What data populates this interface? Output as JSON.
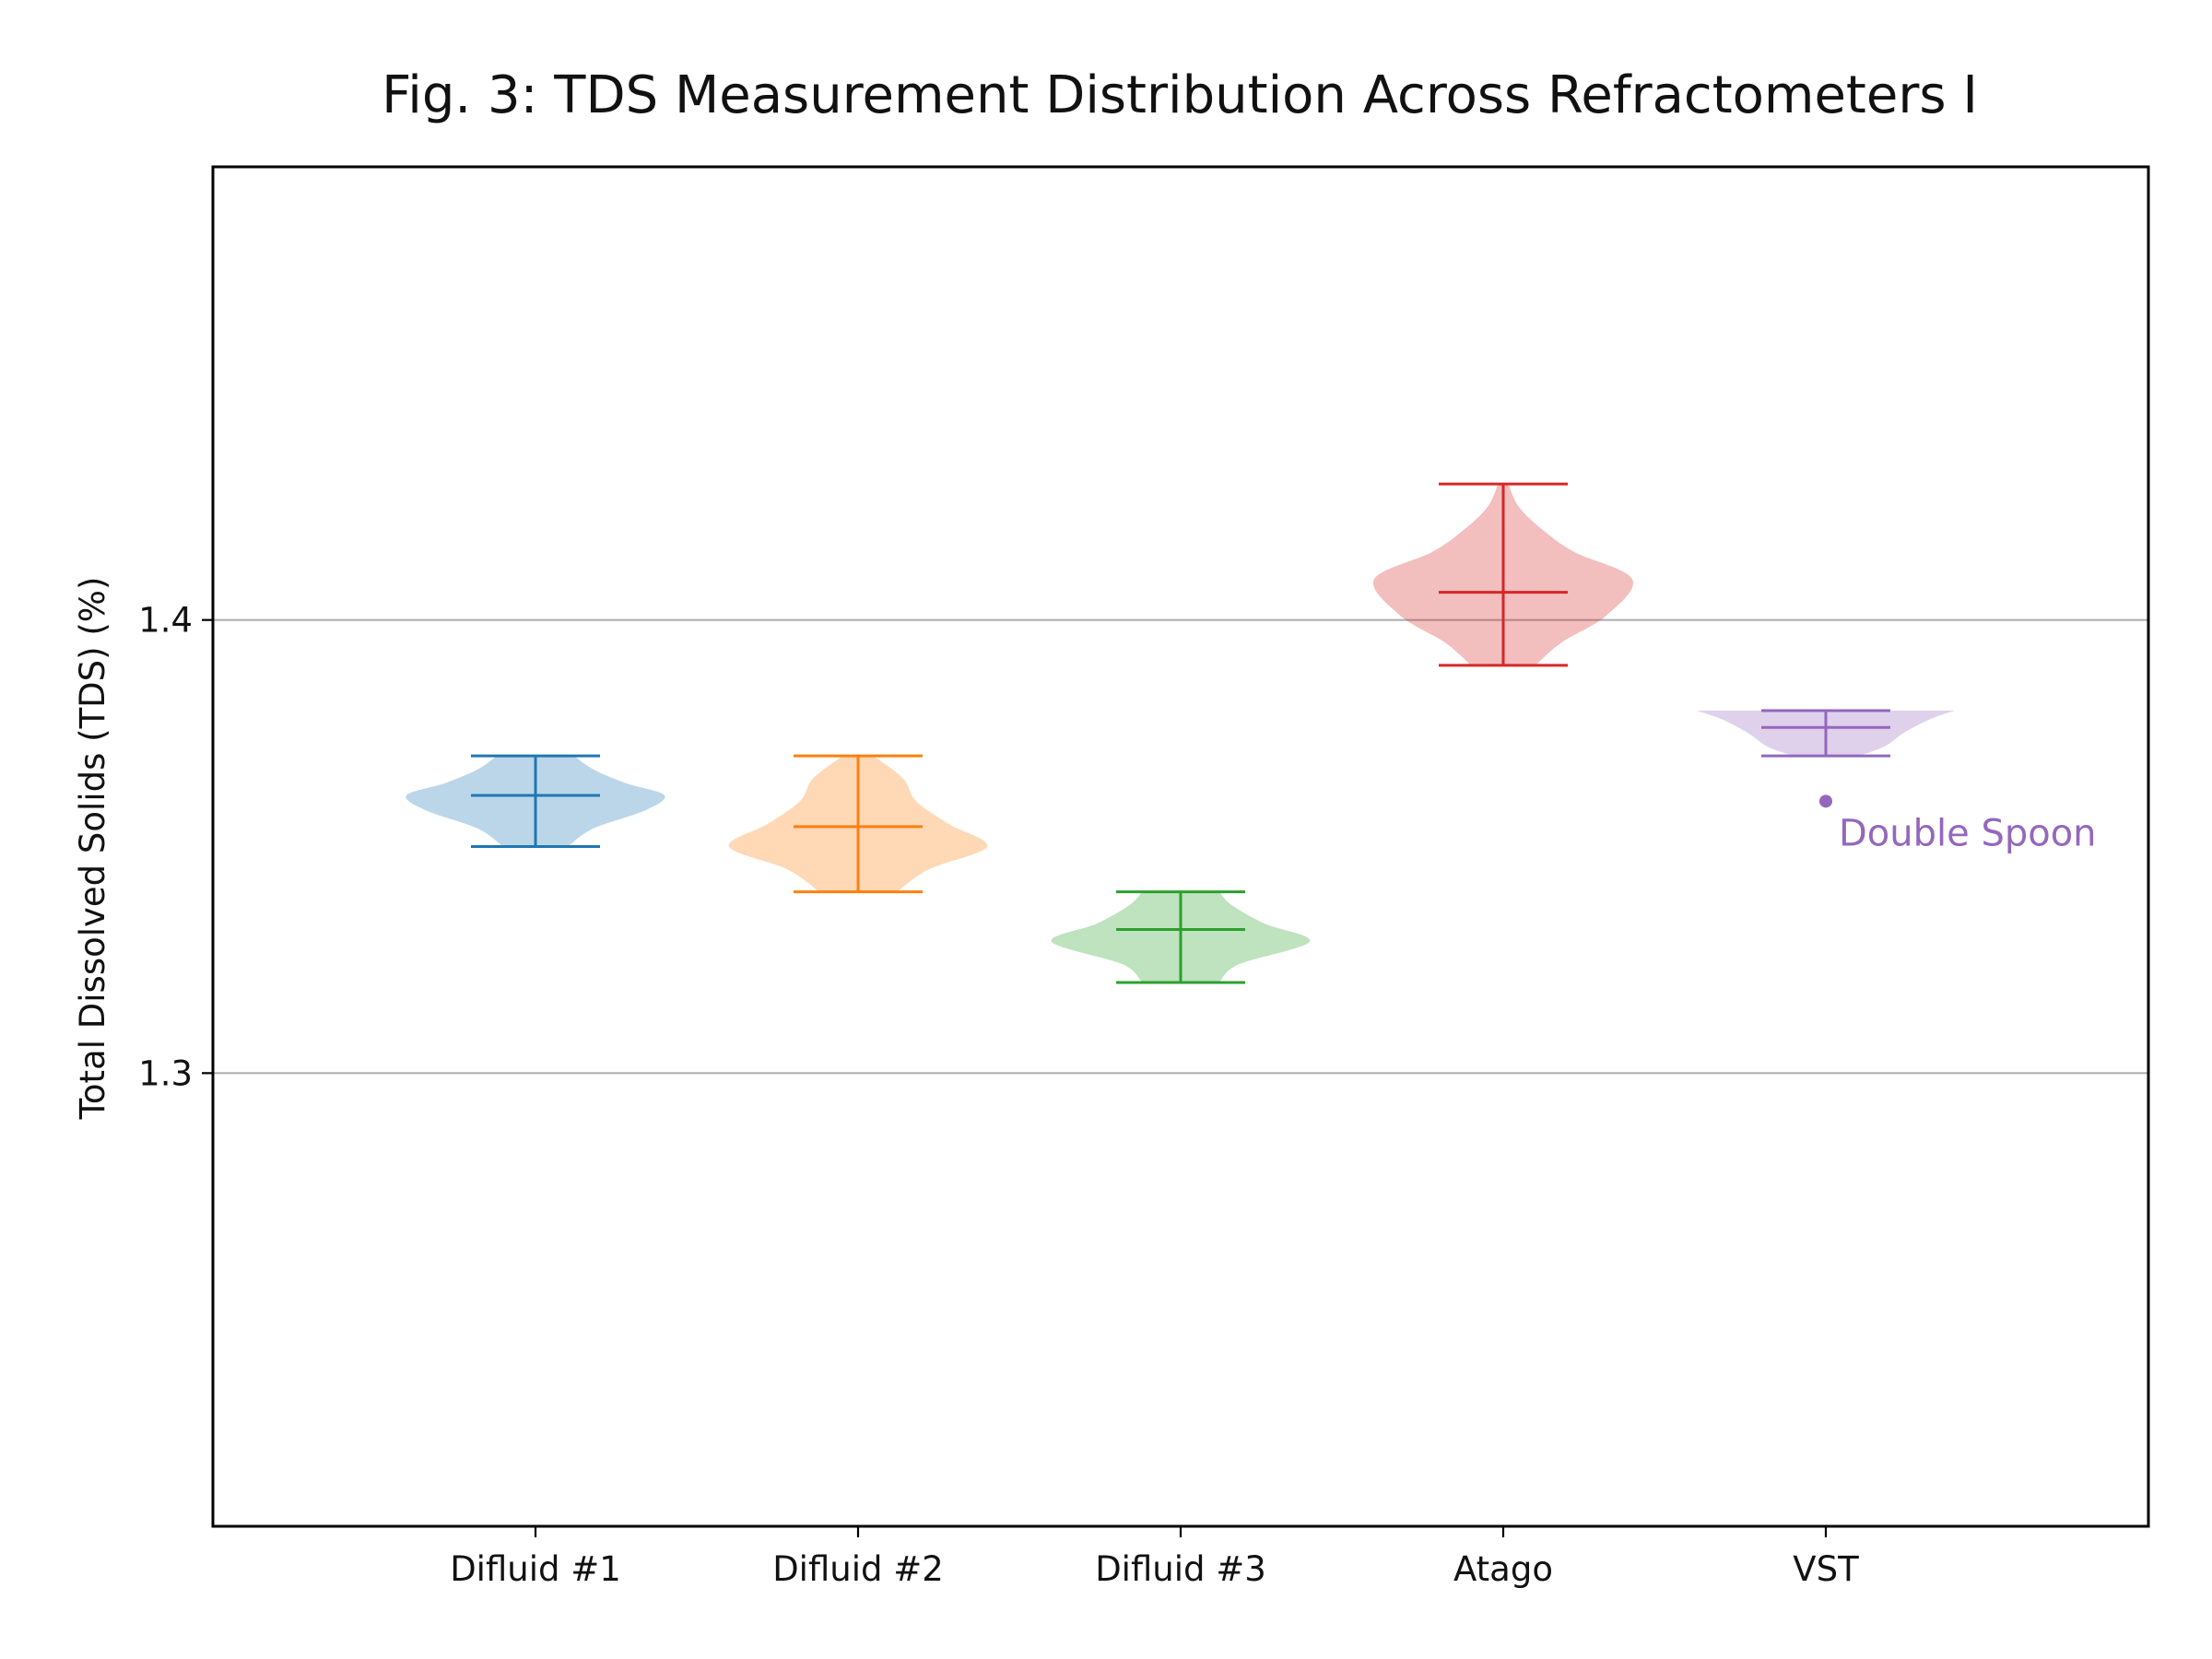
{
  "chart_data": {
    "type": "violin",
    "title": "Fig. 3: TDS Measurement Distribution Across Refractometers I",
    "xlabel": "",
    "ylabel": "Total Dissolved Solids (TDS) (%)",
    "ylim": [
      1.2,
      1.5
    ],
    "yticks": [
      1.3,
      1.4
    ],
    "ytick_labels": [
      "1.3",
      "1.4"
    ],
    "grid": "y",
    "categories": [
      "Difluid #1",
      "Difluid #2",
      "Difluid #3",
      "Atago",
      "VST"
    ],
    "series": [
      {
        "color": "#1f77b4",
        "min": 1.35,
        "max": 1.37,
        "mean": 1.3613,
        "density": [
          [
            1.35,
            0.25
          ],
          [
            1.354,
            0.45
          ],
          [
            1.358,
            0.85
          ],
          [
            1.3613,
            1.0
          ],
          [
            1.364,
            0.7
          ],
          [
            1.367,
            0.45
          ],
          [
            1.37,
            0.3
          ]
        ]
      },
      {
        "color": "#ff7f0e",
        "min": 1.34,
        "max": 1.37,
        "mean": 1.3544,
        "density": [
          [
            1.34,
            0.3
          ],
          [
            1.345,
            0.55
          ],
          [
            1.35,
            1.0
          ],
          [
            1.355,
            0.7
          ],
          [
            1.36,
            0.45
          ],
          [
            1.365,
            0.35
          ],
          [
            1.37,
            0.12
          ]
        ]
      },
      {
        "color": "#2ca02c",
        "min": 1.32,
        "max": 1.34,
        "mean": 1.3317,
        "density": [
          [
            1.32,
            0.3
          ],
          [
            1.324,
            0.45
          ],
          [
            1.329,
            1.0
          ],
          [
            1.333,
            0.65
          ],
          [
            1.337,
            0.4
          ],
          [
            1.34,
            0.3
          ]
        ]
      },
      {
        "color": "#d62728",
        "min": 1.39,
        "max": 1.43,
        "mean": 1.4061,
        "density": [
          [
            1.39,
            0.25
          ],
          [
            1.395,
            0.45
          ],
          [
            1.401,
            0.8
          ],
          [
            1.409,
            1.0
          ],
          [
            1.415,
            0.55
          ],
          [
            1.42,
            0.3
          ],
          [
            1.425,
            0.12
          ],
          [
            1.43,
            0.04
          ]
        ]
      },
      {
        "color": "#9467bd",
        "min": 1.37,
        "max": 1.38,
        "mean": 1.3763,
        "density": [
          [
            1.37,
            0.25
          ],
          [
            1.372,
            0.45
          ],
          [
            1.375,
            0.6
          ],
          [
            1.378,
            0.8
          ],
          [
            1.38,
            1.0
          ]
        ]
      }
    ],
    "outliers": [
      {
        "category": "VST",
        "y": 1.36,
        "color": "#9467bd",
        "label": "Double Spoon"
      }
    ]
  }
}
